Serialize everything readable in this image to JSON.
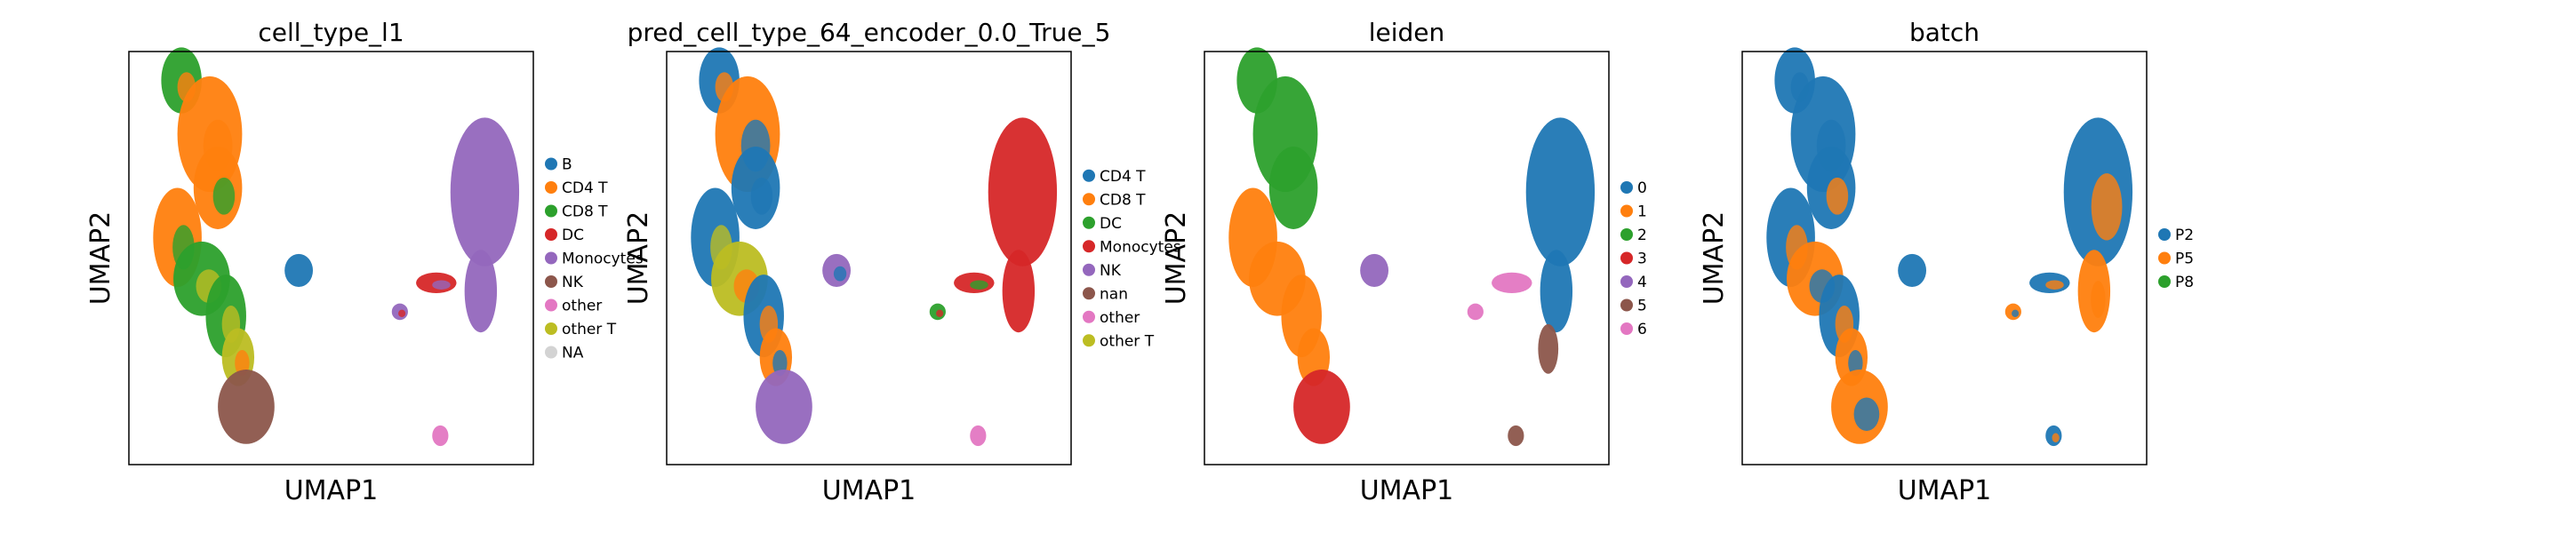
{
  "chart_data": [
    {
      "type": "scatter",
      "title": "cell_type_l1",
      "xlabel": "UMAP1",
      "ylabel": "UMAP2",
      "legend_position": "right",
      "series": [
        {
          "name": "B",
          "color": "#1f77b4"
        },
        {
          "name": "CD4 T",
          "color": "#ff7f0e"
        },
        {
          "name": "CD8 T",
          "color": "#2ca02c"
        },
        {
          "name": "DC",
          "color": "#d62728"
        },
        {
          "name": "Monocytes",
          "color": "#9467bd"
        },
        {
          "name": "NK",
          "color": "#8c564b"
        },
        {
          "name": "other",
          "color": "#e377c2"
        },
        {
          "name": "other T",
          "color": "#bcbd22"
        },
        {
          "name": "NA",
          "color": "#d3d3d3"
        }
      ],
      "clusters": [
        {
          "shape": "left-upper",
          "colors": [
            "#2ca02c",
            "#ff7f0e",
            "#ff7f0e"
          ]
        },
        {
          "shape": "left-mid",
          "colors": [
            "#ff7f0e",
            "#2ca02c",
            "#bcbd22"
          ]
        },
        {
          "shape": "left-lower",
          "colors": [
            "#2ca02c",
            "#bcbd22",
            "#ff7f0e"
          ]
        },
        {
          "shape": "left-bottom",
          "colors": [
            "#8c564b"
          ]
        },
        {
          "shape": "small-mid",
          "colors": [
            "#1f77b4"
          ]
        },
        {
          "shape": "right-big",
          "colors": [
            "#9467bd"
          ]
        },
        {
          "shape": "right-arm",
          "colors": [
            "#d62728",
            "#9467bd"
          ]
        },
        {
          "shape": "tiny-bottom",
          "colors": [
            "#e377c2"
          ]
        }
      ]
    },
    {
      "type": "scatter",
      "title": "pred_cell_type_64_encoder_0.0_True_5",
      "xlabel": "UMAP1",
      "ylabel": "UMAP2",
      "legend_position": "right",
      "series": [
        {
          "name": "CD4 T",
          "color": "#1f77b4"
        },
        {
          "name": "CD8 T",
          "color": "#ff7f0e"
        },
        {
          "name": "DC",
          "color": "#2ca02c"
        },
        {
          "name": "Monocytes",
          "color": "#d62728"
        },
        {
          "name": "NK",
          "color": "#9467bd"
        },
        {
          "name": "nan",
          "color": "#8c564b"
        },
        {
          "name": "other",
          "color": "#e377c2"
        },
        {
          "name": "other T",
          "color": "#bcbd22"
        }
      ],
      "clusters": [
        {
          "shape": "left-upper",
          "colors": [
            "#1f77b4",
            "#ff7f0e",
            "#1f77b4"
          ]
        },
        {
          "shape": "left-mid",
          "colors": [
            "#1f77b4",
            "#bcbd22",
            "#ff7f0e"
          ]
        },
        {
          "shape": "left-lower",
          "colors": [
            "#1f77b4",
            "#ff7f0e"
          ]
        },
        {
          "shape": "left-bottom",
          "colors": [
            "#9467bd"
          ]
        },
        {
          "shape": "small-mid",
          "colors": [
            "#9467bd",
            "#1f77b4",
            "#d62728"
          ]
        },
        {
          "shape": "right-big",
          "colors": [
            "#d62728"
          ]
        },
        {
          "shape": "right-arm",
          "colors": [
            "#d62728",
            "#2ca02c"
          ]
        },
        {
          "shape": "tiny-bottom",
          "colors": [
            "#e377c2"
          ]
        }
      ]
    },
    {
      "type": "scatter",
      "title": "leiden",
      "xlabel": "UMAP1",
      "ylabel": "UMAP2",
      "legend_position": "right",
      "series": [
        {
          "name": "0",
          "color": "#1f77b4"
        },
        {
          "name": "1",
          "color": "#ff7f0e"
        },
        {
          "name": "2",
          "color": "#2ca02c"
        },
        {
          "name": "3",
          "color": "#d62728"
        },
        {
          "name": "4",
          "color": "#9467bd"
        },
        {
          "name": "5",
          "color": "#8c564b"
        },
        {
          "name": "6",
          "color": "#e377c2"
        }
      ],
      "clusters": [
        {
          "shape": "left-upper",
          "colors": [
            "#2ca02c"
          ]
        },
        {
          "shape": "left-mid",
          "colors": [
            "#ff7f0e"
          ]
        },
        {
          "shape": "left-lower",
          "colors": [
            "#ff7f0e"
          ]
        },
        {
          "shape": "left-bottom",
          "colors": [
            "#d62728"
          ]
        },
        {
          "shape": "small-mid",
          "colors": [
            "#9467bd"
          ]
        },
        {
          "shape": "right-big",
          "colors": [
            "#1f77b4"
          ]
        },
        {
          "shape": "right-arm",
          "colors": [
            "#e377c2"
          ]
        },
        {
          "shape": "right-tail",
          "colors": [
            "#8c564b"
          ]
        },
        {
          "shape": "tiny-bottom",
          "colors": [
            "#8c564b"
          ]
        }
      ]
    },
    {
      "type": "scatter",
      "title": "batch",
      "xlabel": "UMAP1",
      "ylabel": "UMAP2",
      "legend_position": "right",
      "series": [
        {
          "name": "P2",
          "color": "#1f77b4"
        },
        {
          "name": "P5",
          "color": "#ff7f0e"
        },
        {
          "name": "P8",
          "color": "#2ca02c"
        }
      ],
      "clusters": [
        {
          "shape": "left-upper",
          "colors": [
            "#1f77b4",
            "#1f77b4",
            "#1f77b4",
            "#ff7f0e"
          ]
        },
        {
          "shape": "left-mid",
          "colors": [
            "#1f77b4",
            "#ff7f0e",
            "#1f77b4"
          ]
        },
        {
          "shape": "left-lower",
          "colors": [
            "#1f77b4",
            "#ff7f0e"
          ]
        },
        {
          "shape": "left-bottom",
          "colors": [
            "#ff7f0e",
            "#1f77b4"
          ]
        },
        {
          "shape": "small-mid",
          "colors": [
            "#1f77b4"
          ]
        },
        {
          "shape": "right-big",
          "colors": [
            "#1f77b4",
            "#ff7f0e",
            "#ff7f0e"
          ]
        },
        {
          "shape": "right-arm",
          "colors": [
            "#1f77b4",
            "#ff7f0e"
          ]
        },
        {
          "shape": "tiny-bottom",
          "colors": [
            "#1f77b4",
            "#ff7f0e"
          ]
        }
      ]
    }
  ]
}
